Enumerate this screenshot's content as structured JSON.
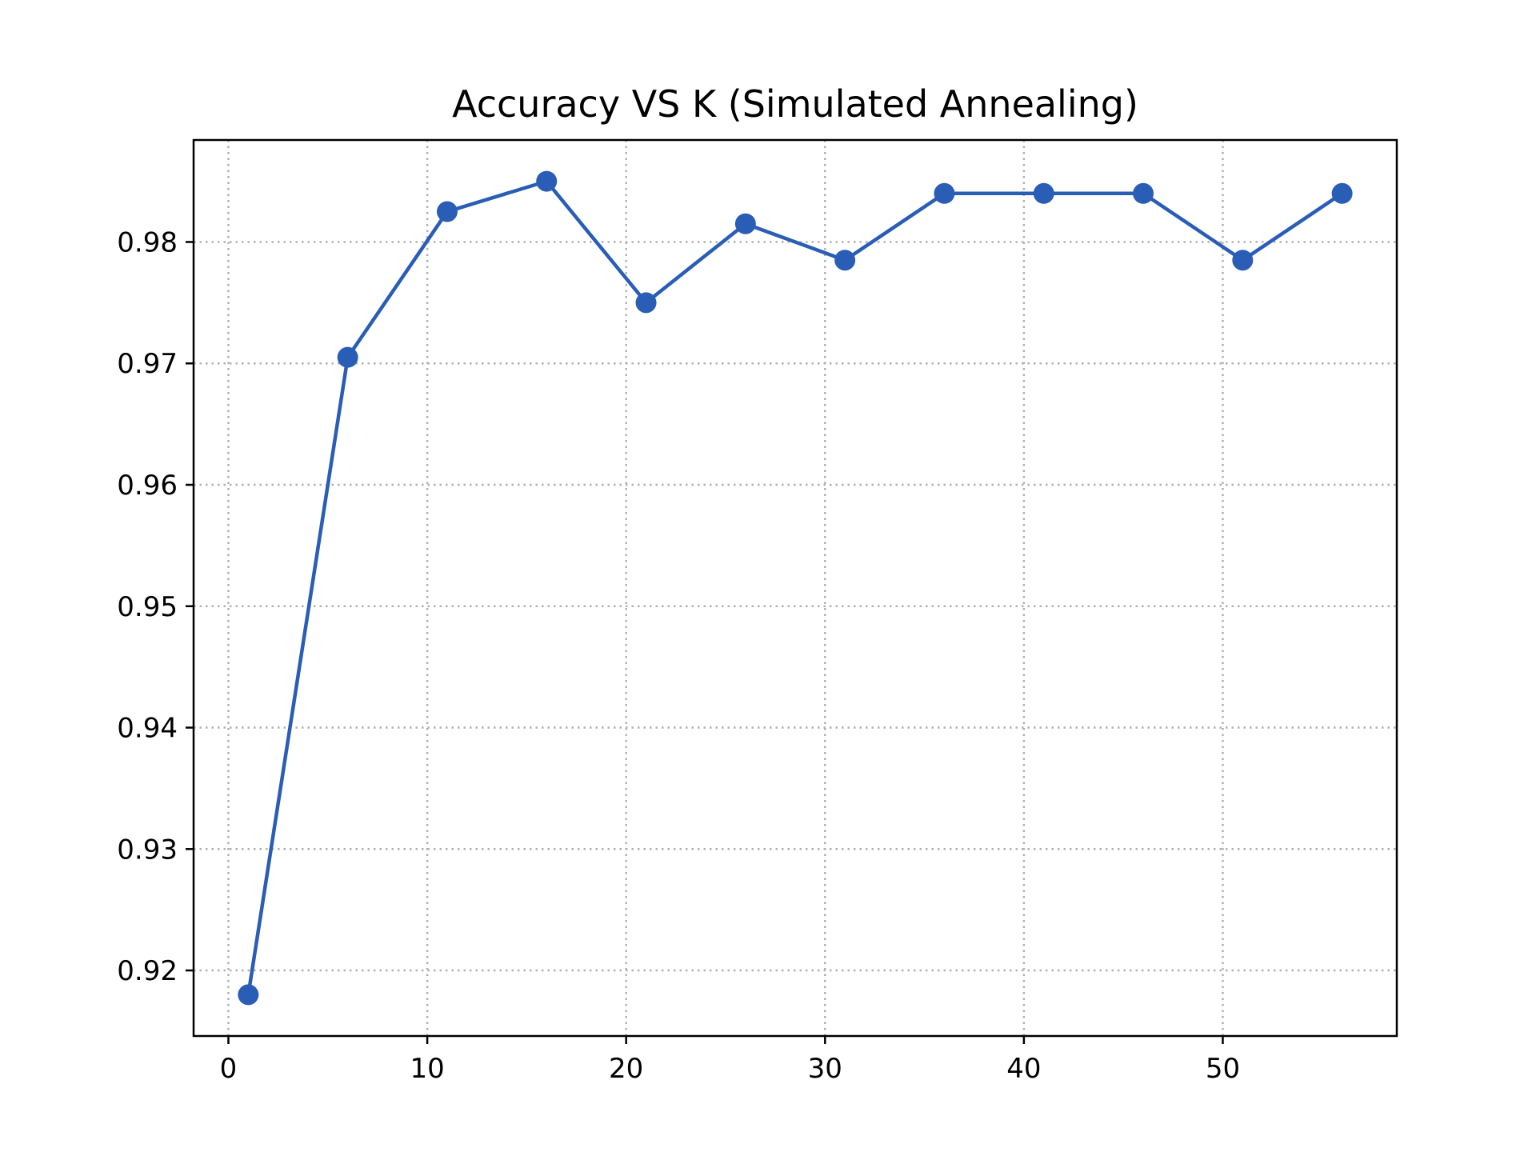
{
  "chart_data": {
    "type": "line",
    "title": "Accuracy VS K (Simulated Annealing)",
    "xlabel": "",
    "ylabel": "",
    "xlim": [
      -1.75,
      58.75
    ],
    "ylim": [
      0.9146,
      0.9884
    ],
    "xticks": [
      0,
      10,
      20,
      30,
      40,
      50
    ],
    "xtick_labels": [
      "0",
      "10",
      "20",
      "30",
      "40",
      "50"
    ],
    "yticks": [
      0.92,
      0.93,
      0.94,
      0.95,
      0.96,
      0.97,
      0.98
    ],
    "ytick_labels": [
      "0.92",
      "0.93",
      "0.94",
      "0.95",
      "0.96",
      "0.97",
      "0.98"
    ],
    "grid": true,
    "series": [
      {
        "color": "#2a5db5",
        "marker": "circle",
        "x": [
          1,
          6,
          11,
          16,
          21,
          26,
          31,
          36,
          41,
          46,
          51,
          56
        ],
        "y": [
          0.918,
          0.9705,
          0.9825,
          0.985,
          0.975,
          0.9815,
          0.9785,
          0.984,
          0.984,
          0.984,
          0.9785,
          0.984
        ]
      }
    ]
  }
}
